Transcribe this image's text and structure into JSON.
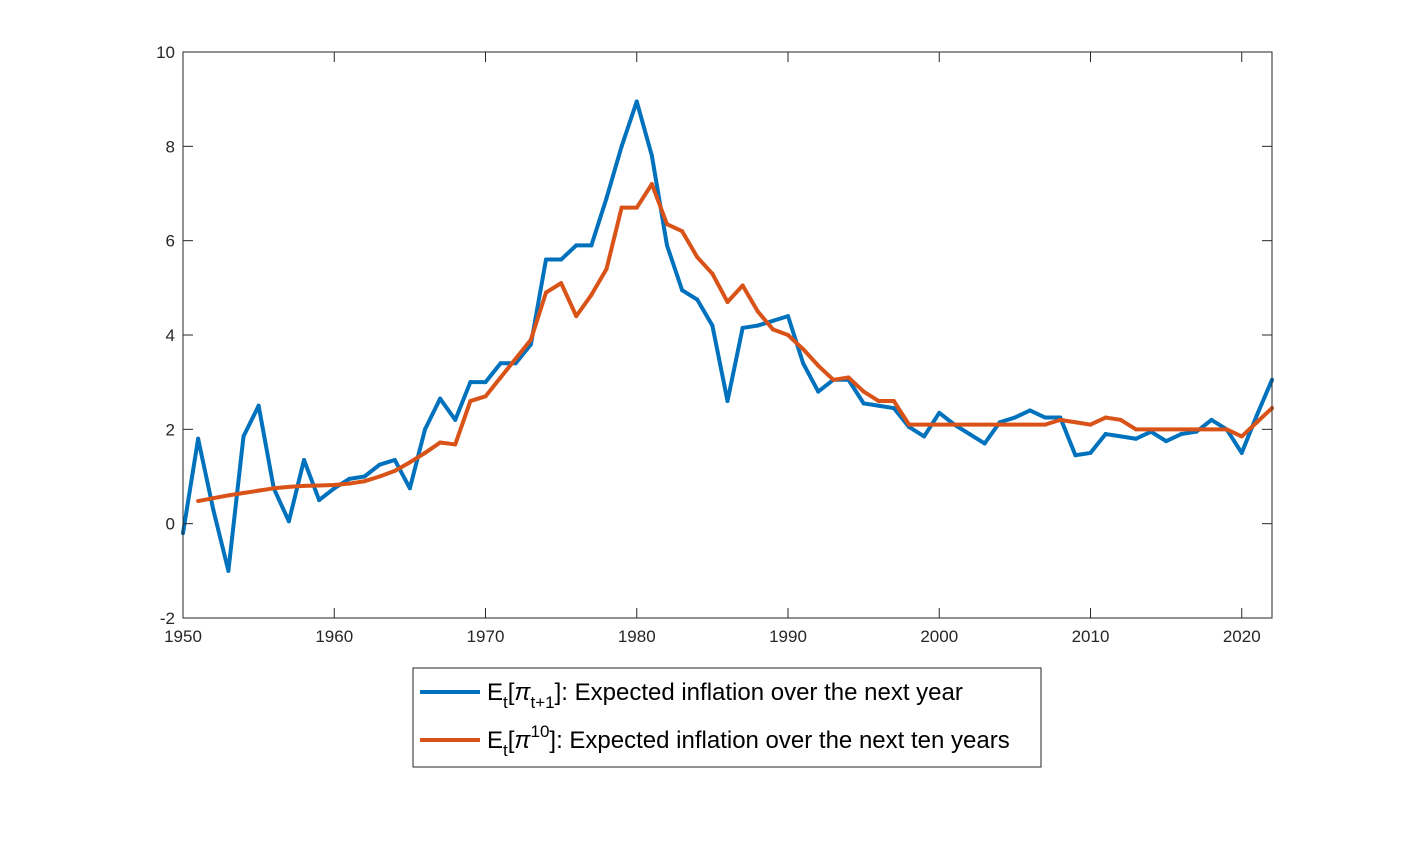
{
  "chart_data": {
    "type": "line",
    "title": "",
    "xlabel": "",
    "ylabel": "",
    "xlim": [
      1950,
      2022
    ],
    "ylim": [
      -2,
      10
    ],
    "x_ticks": [
      1950,
      1960,
      1970,
      1980,
      1990,
      2000,
      2010,
      2020
    ],
    "y_ticks": [
      -2,
      0,
      2,
      4,
      6,
      8,
      10
    ],
    "grid": false,
    "legend_position": "bottom-center",
    "series": [
      {
        "color": "#0072BD",
        "legend": {
          "base": "E",
          "base_sub": "t",
          "open": "[",
          "symbol": "π",
          "symbol_sub": "t+1",
          "symbol_sup": "",
          "rest": "]: Expected inflation over the next year"
        },
        "x": [
          1950,
          1951,
          1952,
          1953,
          1954,
          1955,
          1956,
          1957,
          1958,
          1959,
          1960,
          1961,
          1962,
          1963,
          1964,
          1965,
          1966,
          1967,
          1968,
          1969,
          1970,
          1971,
          1972,
          1973,
          1974,
          1975,
          1976,
          1977,
          1978,
          1979,
          1980,
          1981,
          1982,
          1983,
          1984,
          1985,
          1986,
          1987,
          1988,
          1989,
          1990,
          1991,
          1992,
          1993,
          1994,
          1995,
          1996,
          1997,
          1998,
          1999,
          2000,
          2001,
          2002,
          2003,
          2004,
          2005,
          2006,
          2007,
          2008,
          2009,
          2010,
          2011,
          2012,
          2013,
          2014,
          2015,
          2016,
          2017,
          2018,
          2019,
          2020,
          2021,
          2022
        ],
        "values": [
          -0.2,
          1.8,
          0.3,
          -1.0,
          1.85,
          2.5,
          0.75,
          0.05,
          1.35,
          0.5,
          0.75,
          0.95,
          1.0,
          1.25,
          1.35,
          0.75,
          2.0,
          2.65,
          2.2,
          3.0,
          3.0,
          3.4,
          3.4,
          3.8,
          5.6,
          5.6,
          5.9,
          5.9,
          6.9,
          8.0,
          8.95,
          7.8,
          5.9,
          4.95,
          4.75,
          4.2,
          2.6,
          4.15,
          4.2,
          4.3,
          4.4,
          3.4,
          2.8,
          3.05,
          3.05,
          2.55,
          2.5,
          2.45,
          2.05,
          1.85,
          2.35,
          2.1,
          1.9,
          1.7,
          2.15,
          2.25,
          2.4,
          2.25,
          2.25,
          1.45,
          1.5,
          1.9,
          1.85,
          1.8,
          1.95,
          1.75,
          1.9,
          1.95,
          2.2,
          2.0,
          1.5,
          2.3,
          3.05
        ]
      },
      {
        "color": "#D95319",
        "legend": {
          "base": "E",
          "base_sub": "t",
          "open": "[",
          "symbol": "π",
          "symbol_sub": "",
          "symbol_sup": "10",
          "rest": "]: Expected inflation over the next ten years"
        },
        "x": [
          1951,
          1952,
          1953,
          1954,
          1955,
          1956,
          1957,
          1958,
          1959,
          1960,
          1961,
          1962,
          1963,
          1964,
          1965,
          1966,
          1967,
          1968,
          1969,
          1970,
          1971,
          1972,
          1973,
          1974,
          1975,
          1976,
          1977,
          1978,
          1979,
          1980,
          1981,
          1982,
          1983,
          1984,
          1985,
          1986,
          1987,
          1988,
          1989,
          1990,
          1991,
          1992,
          1993,
          1994,
          1995,
          1996,
          1997,
          1998,
          1999,
          2000,
          2001,
          2002,
          2003,
          2004,
          2005,
          2006,
          2007,
          2008,
          2009,
          2010,
          2011,
          2012,
          2013,
          2014,
          2015,
          2016,
          2017,
          2018,
          2019,
          2020,
          2021,
          2022
        ],
        "values": [
          0.48,
          0.54,
          0.6,
          0.65,
          0.7,
          0.75,
          0.78,
          0.8,
          0.81,
          0.82,
          0.85,
          0.9,
          1.0,
          1.12,
          1.3,
          1.5,
          1.72,
          1.68,
          2.6,
          2.7,
          3.1,
          3.5,
          3.9,
          4.9,
          5.1,
          4.4,
          4.85,
          5.4,
          6.7,
          6.7,
          7.2,
          6.35,
          6.2,
          5.65,
          5.3,
          4.7,
          5.05,
          4.5,
          4.12,
          4.0,
          3.7,
          3.35,
          3.05,
          3.1,
          2.8,
          2.6,
          2.6,
          2.1,
          2.1,
          2.1,
          2.1,
          2.1,
          2.1,
          2.1,
          2.1,
          2.1,
          2.1,
          2.2,
          2.15,
          2.1,
          2.25,
          2.2,
          2.0,
          2.0,
          2.0,
          2.0,
          2.0,
          2.0,
          2.0,
          1.85,
          2.15,
          2.45
        ]
      }
    ]
  }
}
